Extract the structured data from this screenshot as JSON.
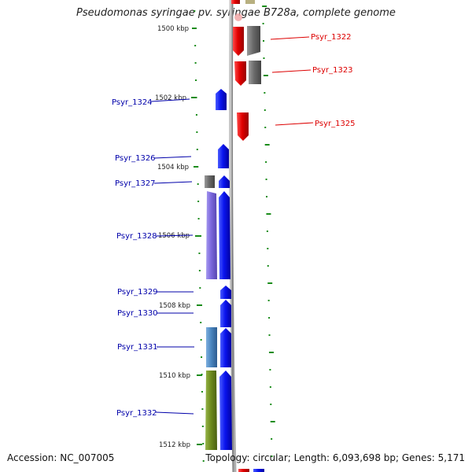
{
  "title": "Pseudomonas syringae pv. syringae B728a, complete genome",
  "accession": "Accession: NC_007005",
  "topology": "Topology: circular; Length: 6,093,698 bp; Genes: 5,171",
  "colors": {
    "forward": "#dd0000",
    "reverse": "#1111ee",
    "gray": "#6a6a6a",
    "purple": "#7b68dd",
    "steel": "#4a86c0",
    "olive": "#6e8c1e",
    "backbone": "#8c8c8c",
    "tick": "#1a8c1a",
    "label_forward": "#dd0000",
    "label_reverse": "#0000aa"
  },
  "scale_labels": [
    {
      "text": "1500 kbp"
    },
    {
      "text": "1502 kbp"
    },
    {
      "text": "1504 kbp"
    },
    {
      "text": "1506 kbp"
    },
    {
      "text": "1508 kbp"
    },
    {
      "text": "1510 kbp"
    },
    {
      "text": "1512 kbp"
    }
  ],
  "gene_labels": [
    {
      "text": "Psyr_1322",
      "strand": "forward"
    },
    {
      "text": "Psyr_1323",
      "strand": "forward"
    },
    {
      "text": "Psyr_1324",
      "strand": "reverse"
    },
    {
      "text": "Psyr_1325",
      "strand": "forward"
    },
    {
      "text": "Psyr_1326",
      "strand": "reverse"
    },
    {
      "text": "Psyr_1327",
      "strand": "reverse"
    },
    {
      "text": "Psyr_1328",
      "strand": "reverse"
    },
    {
      "text": "Psyr_1329",
      "strand": "reverse"
    },
    {
      "text": "Psyr_1330",
      "strand": "reverse"
    },
    {
      "text": "Psyr_1331",
      "strand": "reverse"
    },
    {
      "text": "Psyr_1332",
      "strand": "reverse"
    }
  ]
}
